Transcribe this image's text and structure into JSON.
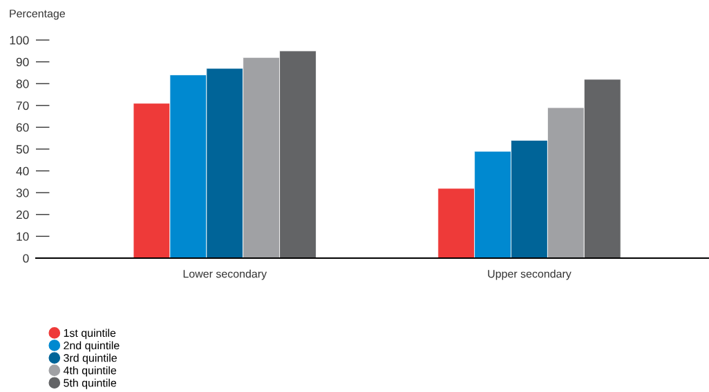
{
  "chart_data": {
    "type": "bar",
    "ylabel": "Percentage",
    "categories": [
      "Lower secondary",
      "Upper secondary"
    ],
    "series": [
      {
        "name": "1st quintile",
        "color": "#ee3a39",
        "values": [
          71,
          32
        ]
      },
      {
        "name": "2nd quintile",
        "color": "#0089d0",
        "values": [
          84,
          49
        ]
      },
      {
        "name": "3rd quintile",
        "color": "#006498",
        "values": [
          87,
          54
        ]
      },
      {
        "name": "4th quintile",
        "color": "#a0a1a4",
        "values": [
          92,
          69
        ]
      },
      {
        "name": "5th quintile",
        "color": "#636466",
        "values": [
          95,
          82
        ]
      }
    ],
    "ylim": [
      0,
      100
    ],
    "yticks": [
      0,
      10,
      20,
      30,
      40,
      50,
      60,
      70,
      80,
      90,
      100
    ],
    "grid": false,
    "legend": "bottom left"
  }
}
